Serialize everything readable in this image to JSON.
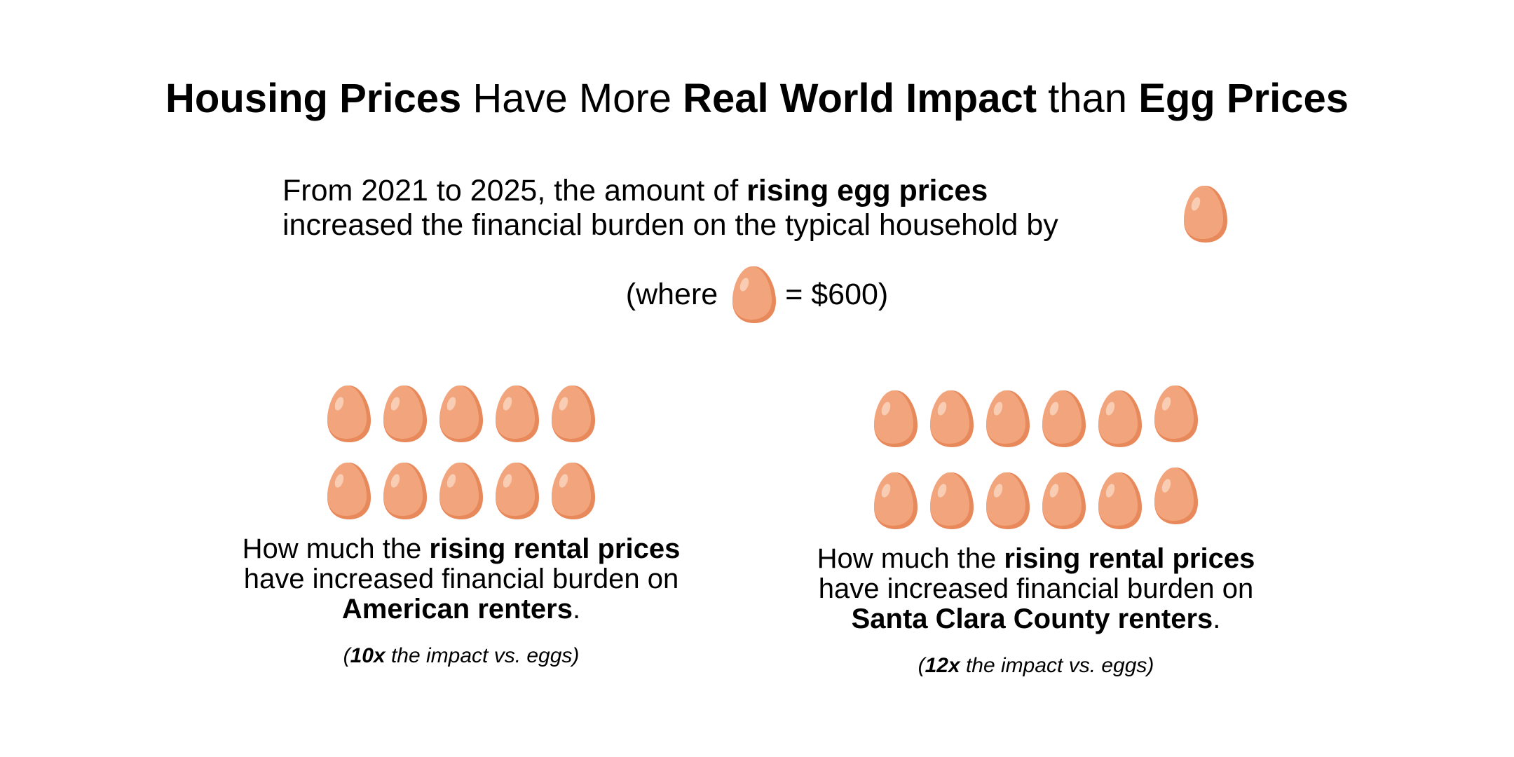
{
  "title": {
    "p1": "Housing Prices",
    "p2": " Have More ",
    "p3": "Real World Impact",
    "p4": " than ",
    "p5": "Egg Prices"
  },
  "intro": {
    "line1_a": "From 2021 to 2025, the amount of ",
    "line1_b": "rising egg prices",
    "line2": "increased the financial burden on the typical household by"
  },
  "legend": {
    "prefix": "(where",
    "suffix": "= $600)",
    "egg_value_usd": 600
  },
  "panels": [
    {
      "egg_count": 10,
      "caption_a": "How much the ",
      "caption_b": "rising rental prices",
      "caption_c": " have increased financial burden on ",
      "caption_d": "American renters",
      "caption_e": ".",
      "note_a": "(",
      "note_b": "10x",
      "note_c": " the impact vs. eggs)"
    },
    {
      "egg_count": 12,
      "caption_a": "How much the ",
      "caption_b": "rising rental prices",
      "caption_c": " have increased financial burden on ",
      "caption_d": "Santa Clara County renters",
      "caption_e": ".",
      "note_a": "(",
      "note_b": "12x",
      "note_c": " the impact vs. eggs)"
    }
  ],
  "colors": {
    "egg_fill": "#f2a57c",
    "egg_shade": "#e8895c",
    "egg_highlight": "#f9cdb3",
    "text": "#000000"
  }
}
